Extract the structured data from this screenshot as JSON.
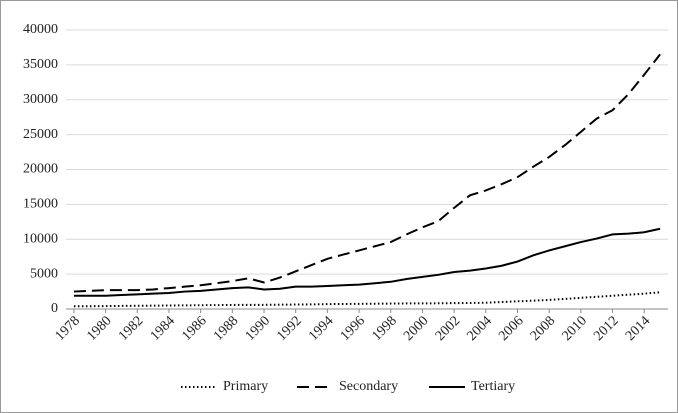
{
  "chart_data": {
    "type": "line",
    "x": [
      1978,
      1979,
      1980,
      1981,
      1982,
      1983,
      1984,
      1985,
      1986,
      1987,
      1988,
      1989,
      1990,
      1991,
      1992,
      1993,
      1994,
      1995,
      1996,
      1997,
      1998,
      1999,
      2000,
      2001,
      2002,
      2003,
      2004,
      2005,
      2006,
      2007,
      2008,
      2009,
      2010,
      2011,
      2012,
      2013,
      2014,
      2015
    ],
    "series": [
      {
        "name": "Primary",
        "color": "#000000",
        "dash": "dotted",
        "values": [
          400,
          400,
          420,
          440,
          460,
          480,
          500,
          520,
          540,
          560,
          580,
          600,
          600,
          620,
          640,
          660,
          700,
          720,
          740,
          760,
          780,
          800,
          800,
          820,
          840,
          860,
          900,
          1000,
          1100,
          1200,
          1300,
          1450,
          1600,
          1750,
          1900,
          2050,
          2200,
          2400
        ]
      },
      {
        "name": "Secondary",
        "color": "#000000",
        "dash": "dashed",
        "values": [
          2500,
          2600,
          2700,
          2700,
          2700,
          2800,
          3000,
          3200,
          3400,
          3700,
          4000,
          4400,
          3800,
          4500,
          5400,
          6300,
          7200,
          7800,
          8400,
          9000,
          9600,
          10700,
          11700,
          12600,
          14500,
          16300,
          17000,
          17900,
          18900,
          20400,
          21800,
          23500,
          25400,
          27300,
          28500,
          30800,
          33600,
          36500
        ]
      },
      {
        "name": "Tertiary",
        "color": "#000000",
        "dash": "solid",
        "values": [
          1900,
          1900,
          1900,
          2000,
          2100,
          2200,
          2300,
          2500,
          2600,
          2800,
          3000,
          3100,
          2800,
          2900,
          3200,
          3200,
          3300,
          3400,
          3500,
          3700,
          3900,
          4300,
          4600,
          4900,
          5300,
          5500,
          5800,
          6200,
          6800,
          7700,
          8400,
          9000,
          9600,
          10100,
          10700,
          10800,
          11000,
          11500
        ]
      }
    ],
    "xlim": [
      1977.5,
      2015.5
    ],
    "xticks": [
      1978,
      1980,
      1982,
      1984,
      1986,
      1988,
      1990,
      1992,
      1994,
      1996,
      1998,
      2000,
      2002,
      2004,
      2006,
      2008,
      2010,
      2012,
      2014
    ],
    "ylim": [
      0,
      40000
    ],
    "yticks": [
      0,
      5000,
      10000,
      15000,
      20000,
      25000,
      30000,
      35000,
      40000
    ],
    "grid": true,
    "legend": "bottom"
  }
}
